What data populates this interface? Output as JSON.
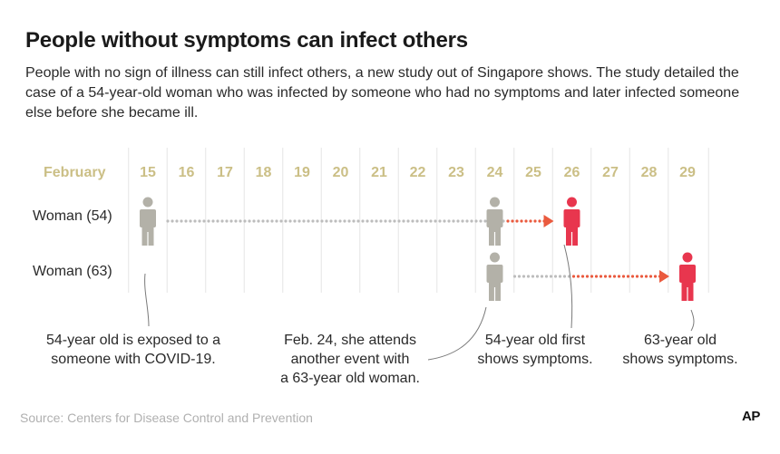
{
  "title": "People without symptoms can infect others",
  "intro": "People with no sign of illness can still infect others, a new study out of Singapore shows. The study detailed the case of a 54-year-old woman who was infected by someone who had no symptoms and later infected someone else before she became ill.",
  "timeline": {
    "month_label": "February",
    "days": [
      "15",
      "16",
      "17",
      "18",
      "19",
      "20",
      "21",
      "22",
      "23",
      "24",
      "25",
      "26",
      "27",
      "28",
      "29"
    ],
    "rows": [
      {
        "label": "Woman (54)",
        "figures": [
          {
            "day": "15",
            "state": "no-symptoms"
          },
          {
            "day": "24",
            "state": "no-symptoms"
          },
          {
            "day": "26",
            "state": "symptoms"
          }
        ],
        "arrow": {
          "from": "15",
          "to": "26"
        }
      },
      {
        "label": "Woman (63)",
        "figures": [
          {
            "day": "24",
            "state": "no-symptoms"
          },
          {
            "day": "29",
            "state": "symptoms"
          }
        ],
        "arrow": {
          "from": "24",
          "to": "29"
        }
      }
    ],
    "annotations": [
      {
        "lines": [
          "54-year old is exposed to a",
          "someone with COVID-19."
        ]
      },
      {
        "lines": [
          "Feb. 24, she attends",
          "another event with",
          "a 63-year old woman."
        ]
      },
      {
        "lines": [
          "54-year old first",
          "shows symptoms."
        ]
      },
      {
        "lines": [
          "63-year old",
          "shows symptoms."
        ]
      }
    ]
  },
  "source": "Source: Centers for Disease Control and Prevention",
  "logo": "AP",
  "colors": {
    "day_label": "#cbbf86",
    "grid": "#e6e6e6",
    "no_symptoms": "#b3b1a8",
    "symptoms": "#e8364e",
    "dots_gray": "#bdbdbd",
    "dots_red": "#ea5a3e"
  },
  "icons": {
    "person": "person-icon",
    "arrow": "arrow-head-icon"
  }
}
